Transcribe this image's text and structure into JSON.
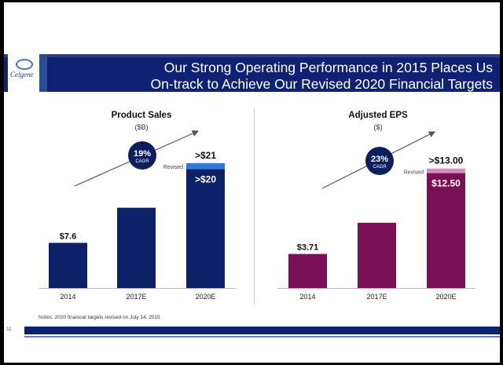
{
  "slide": {
    "title_line1": "Our Strong Operating Performance in 2015 Places Us",
    "title_line2": "On-track to Achieve Our Revised 2020 Financial Targets",
    "logo": "Celgene",
    "footnote": "Notes:  2020 financial targets revised on July 14, 2015",
    "page_number": "11"
  },
  "colors": {
    "sales_bar": "#0c2168",
    "sales_revised": "#2f7ad9",
    "eps_bar": "#7a0f55",
    "eps_revised": "#d48fc0",
    "badge": "#0b1f5e",
    "header": "#0e2173"
  },
  "chart_data": [
    {
      "type": "bar",
      "title": "Product Sales",
      "unit": "($B)",
      "categories": [
        "2014",
        "2017E",
        "2020E"
      ],
      "values": [
        7.6,
        13.5,
        20
      ],
      "data_labels": [
        "$7.6",
        "",
        ">$20"
      ],
      "revised_top": {
        "value": 21,
        "label": ">$21",
        "note": "Revised"
      },
      "cagr": {
        "pct": "19%",
        "label": "CAGR"
      },
      "ylim": [
        0,
        21.5
      ]
    },
    {
      "type": "bar",
      "title": "Adjusted EPS",
      "unit": "($)",
      "categories": [
        "2014",
        "2017E",
        "2020E"
      ],
      "values": [
        3.71,
        7.1,
        12.5
      ],
      "data_labels": [
        "$3.71",
        "",
        "$12.50"
      ],
      "revised_top": {
        "value": 13.0,
        "label": ">$13.00",
        "note": "Revised"
      },
      "cagr": {
        "pct": "23%",
        "label": "CAGR"
      },
      "ylim": [
        0,
        13.4
      ]
    }
  ]
}
